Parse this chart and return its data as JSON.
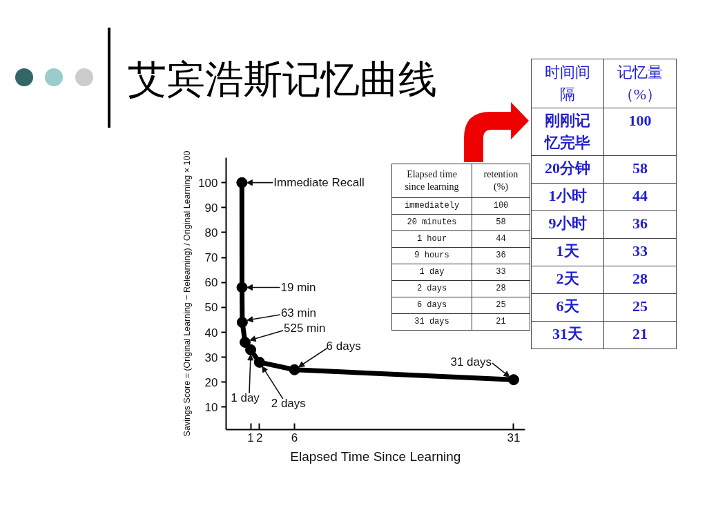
{
  "chart_data": [
    {
      "type": "line",
      "title": "艾宾浩斯记忆曲线",
      "xlabel": "Elapsed Time Since Learning",
      "ylabel": "Savings Score = (Original Learning − Relearning) / Original Learning × 100",
      "x": [
        0,
        0.013,
        0.044,
        0.365,
        1,
        2,
        6,
        31
      ],
      "series": [
        {
          "color": "#000000",
          "values": [
            100,
            58,
            44,
            36,
            33,
            28,
            25,
            21
          ]
        }
      ],
      "xlim": [
        -1.8,
        32.3
      ],
      "xticks": [
        1,
        2,
        6,
        31
      ],
      "ylim": [
        1,
        110
      ],
      "yticks": [
        10,
        20,
        30,
        40,
        50,
        60,
        70,
        80,
        90,
        100
      ],
      "grid": false,
      "marker": "circle",
      "line_style": "solid",
      "annotations": [
        {
          "text": "Immediate Recall",
          "x": 0,
          "y": 100
        },
        {
          "text": "19 min",
          "x": 0.013,
          "y": 58
        },
        {
          "text": "63 min",
          "x": 0.044,
          "y": 44
        },
        {
          "text": "525 min",
          "x": 0.365,
          "y": 36
        },
        {
          "text": "1 day",
          "x": 1,
          "y": 33
        },
        {
          "text": "2 days",
          "x": 2,
          "y": 28
        },
        {
          "text": "6 days",
          "x": 6,
          "y": 25
        },
        {
          "text": "31 days",
          "x": 31,
          "y": 21
        }
      ]
    },
    {
      "type": "other",
      "xlabel": "Elapsed time since learning",
      "ylabel": "retention (%)",
      "categories": [
        "immediately",
        "20 minutes",
        "1 hour",
        "9 hours",
        "1 day",
        "2 days",
        "6 days",
        "31 days"
      ],
      "values": [
        100,
        58,
        44,
        36,
        33,
        28,
        25,
        21
      ],
      "data_labels": true
    },
    {
      "type": "other",
      "xlabel": "时间间隔",
      "ylabel": "记忆量（%）",
      "categories": [
        "刚刚记忆完毕",
        "20分钟",
        "1小时",
        "9小时",
        "1天",
        "2天",
        "6天",
        "31天"
      ],
      "values": [
        100,
        58,
        44,
        36,
        33,
        28,
        25,
        21
      ],
      "data_labels": true
    }
  ]
}
